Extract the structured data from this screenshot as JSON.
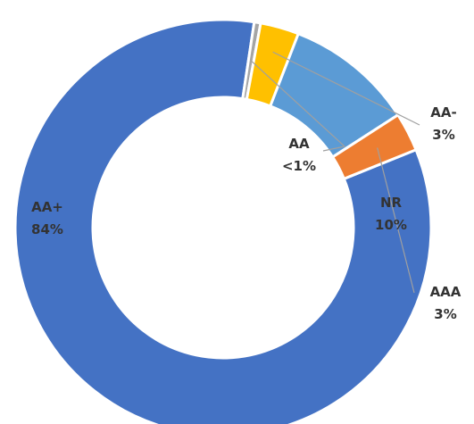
{
  "chart_data": {
    "type": "pie",
    "donut": true,
    "title": "",
    "slices": [
      {
        "category": "AA+",
        "percent_label": "84%",
        "value": 83.5,
        "color": "#4472C4"
      },
      {
        "category": "AA",
        "percent_label": "<1%",
        "value": 0.5,
        "color": "#A5A5A5"
      },
      {
        "category": "AA-",
        "percent_label": "3%",
        "value": 3,
        "color": "#FFC000"
      },
      {
        "category": "NR",
        "percent_label": "10%",
        "value": 10,
        "color": "#5B9BD5"
      },
      {
        "category": "AAA",
        "percent_label": "3%",
        "value": 3,
        "color": "#ED7D31"
      }
    ]
  }
}
